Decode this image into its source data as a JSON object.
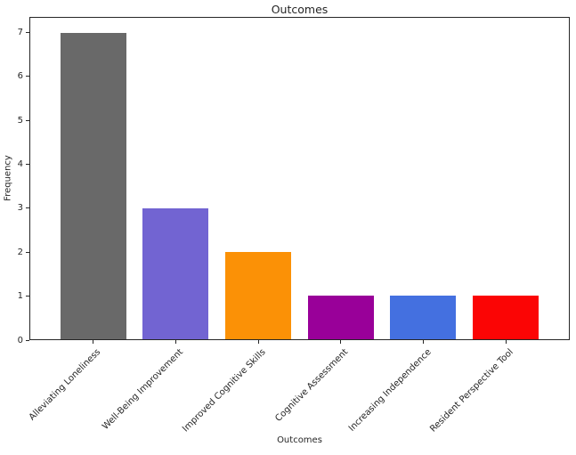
{
  "chart_data": {
    "type": "bar",
    "title": "Outcomes",
    "xlabel": "Outcomes",
    "ylabel": "Frequency",
    "categories": [
      "Alleviating Loneliness",
      "Well-Being Improvement",
      "Improved Cognitive Skills",
      "Cognitive Assessment",
      "Increasing Independence",
      "Resident Perspective Tool"
    ],
    "values": [
      7,
      3,
      2,
      1,
      1,
      1
    ],
    "bar_colors": [
      "#696969",
      "#7264d2",
      "#fb9106",
      "#990099",
      "#4470e0",
      "#fb0505"
    ],
    "yticks": [
      0,
      1,
      2,
      3,
      4,
      5,
      6,
      7
    ],
    "ylim": [
      0,
      7.35
    ],
    "xlim_units": [
      -0.775,
      5.775
    ],
    "bar_width_units": 0.8,
    "grid": false,
    "legend": false,
    "axis_color": "#262626",
    "background": "#ffffff"
  }
}
